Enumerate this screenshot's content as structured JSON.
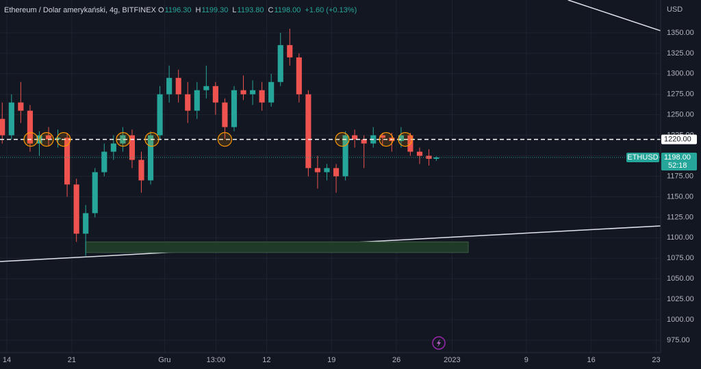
{
  "chart_data": {
    "type": "candlestick",
    "title": "Ethereum / Dolar amerykański, 4g, BITFINEX",
    "ohlc_header": [
      {
        "label": "O",
        "value": "1196.30"
      },
      {
        "label": "H",
        "value": "1199.30"
      },
      {
        "label": "L",
        "value": "1193.80"
      },
      {
        "label": "C",
        "value": "1198.00"
      }
    ],
    "change": "+1.60 (+0.13%)",
    "currency": "USD",
    "symbol": "ETHUSD",
    "last_price": {
      "value": 1198,
      "label": "1198.00"
    },
    "countdown": "52:18",
    "level_line": {
      "value": 1220,
      "label": "1220.00"
    },
    "up_color": "#26a69a",
    "down_color": "#ef5350",
    "grid": true,
    "xlim": [
      0.26,
      71.48
    ],
    "ylim": [
      960,
      1390
    ],
    "xticks": [
      {
        "value": 1,
        "label": "14"
      },
      {
        "value": 8,
        "label": "21"
      },
      {
        "value": 18,
        "label": "Gru"
      },
      {
        "value": 23.54,
        "label": "13:00"
      },
      {
        "value": 29,
        "label": "12"
      },
      {
        "value": 36,
        "label": "19"
      },
      {
        "value": 43,
        "label": "26"
      },
      {
        "value": 49,
        "label": "2023"
      },
      {
        "value": 57,
        "label": "9"
      },
      {
        "value": 64,
        "label": "16"
      },
      {
        "value": 71,
        "label": "23"
      }
    ],
    "yticks": [
      {
        "value": 975,
        "label": "975.00"
      },
      {
        "value": 1000,
        "label": "1000.00"
      },
      {
        "value": 1025,
        "label": "1025.00"
      },
      {
        "value": 1050,
        "label": "1050.00"
      },
      {
        "value": 1075,
        "label": "1075.00"
      },
      {
        "value": 1100,
        "label": "1100.00"
      },
      {
        "value": 1125,
        "label": "1125.00"
      },
      {
        "value": 1150,
        "label": "1150.00"
      },
      {
        "value": 1175,
        "label": "1175.00"
      },
      {
        "value": 1200,
        "label": "1200.00"
      },
      {
        "value": 1225,
        "label": "1225.00"
      },
      {
        "value": 1250,
        "label": "1250.00"
      },
      {
        "value": 1275,
        "label": "1275.00"
      },
      {
        "value": 1300,
        "label": "1300.00"
      },
      {
        "value": 1325,
        "label": "1325.00"
      },
      {
        "value": 1350,
        "label": "1350.00"
      }
    ],
    "x": [
      0.5,
      1.5,
      2.5,
      3.5,
      4.5,
      5.5,
      6.5,
      7.5,
      8.5,
      9.5,
      10.5,
      11.5,
      12.5,
      13.5,
      14.5,
      15.5,
      16.5,
      17.5,
      18.5,
      19.5,
      20.5,
      21.5,
      22.5,
      23.5,
      24.5,
      25.5,
      26.5,
      27.5,
      28.5,
      29.5,
      30.5,
      31.5,
      32.5,
      33.5,
      34.5,
      35.5,
      36.5,
      37.5,
      38.5,
      39.5,
      40.5,
      41.5,
      42.5,
      43.5,
      44.5,
      45.5,
      46.5,
      47.3
    ],
    "open": [
      1245,
      1225,
      1265,
      1255,
      1215,
      1225,
      1220,
      1222,
      1165,
      1105,
      1130,
      1180,
      1205,
      1215,
      1225,
      1195,
      1170,
      1225,
      1275,
      1295,
      1275,
      1255,
      1280,
      1285,
      1265,
      1235,
      1280,
      1275,
      1280,
      1265,
      1290,
      1335,
      1320,
      1275,
      1185,
      1180,
      1185,
      1175,
      1225,
      1220,
      1215,
      1225,
      1222,
      1218,
      1225,
      1205,
      1200,
      1196.3
    ],
    "high": [
      1265,
      1275,
      1290,
      1262,
      1230,
      1235,
      1232,
      1228,
      1172,
      1140,
      1185,
      1215,
      1225,
      1235,
      1232,
      1205,
      1230,
      1285,
      1310,
      1305,
      1290,
      1290,
      1310,
      1290,
      1270,
      1285,
      1298,
      1292,
      1290,
      1300,
      1350,
      1355,
      1325,
      1280,
      1200,
      1190,
      1190,
      1230,
      1232,
      1225,
      1235,
      1228,
      1228,
      1235,
      1228,
      1210,
      1208,
      1199.3
    ],
    "low": [
      1215,
      1220,
      1240,
      1205,
      1200,
      1212,
      1210,
      1150,
      1095,
      1078,
      1125,
      1175,
      1195,
      1205,
      1185,
      1155,
      1165,
      1220,
      1265,
      1265,
      1240,
      1245,
      1270,
      1250,
      1220,
      1230,
      1268,
      1262,
      1255,
      1260,
      1285,
      1310,
      1265,
      1175,
      1160,
      1170,
      1155,
      1170,
      1210,
      1185,
      1210,
      1212,
      1205,
      1210,
      1200,
      1190,
      1188,
      1193.8
    ],
    "close": [
      1225,
      1265,
      1255,
      1215,
      1225,
      1220,
      1222,
      1165,
      1105,
      1130,
      1180,
      1205,
      1215,
      1225,
      1195,
      1170,
      1225,
      1275,
      1295,
      1275,
      1255,
      1280,
      1285,
      1265,
      1235,
      1280,
      1275,
      1280,
      1265,
      1290,
      1335,
      1320,
      1275,
      1185,
      1180,
      1185,
      1175,
      1225,
      1220,
      1215,
      1225,
      1222,
      1218,
      1225,
      1205,
      1200,
      1196.3,
      1198
    ],
    "touch_points": {
      "x": [
        3.58,
        5.28,
        7.12,
        13.54,
        16.64,
        24.5,
        37.16,
        41.9,
        43.95
      ],
      "price": 1220
    },
    "zone": {
      "x": [
        9.48,
        50.74
      ],
      "price": [
        1082,
        1095
      ]
    },
    "trendlines": [
      {
        "x": [
          0.26,
          71.48
        ],
        "price": [
          1071,
          1114.5
        ]
      },
      {
        "x": [
          61.5,
          71.48
        ],
        "price": [
          1390,
          1352.5
        ]
      }
    ]
  }
}
